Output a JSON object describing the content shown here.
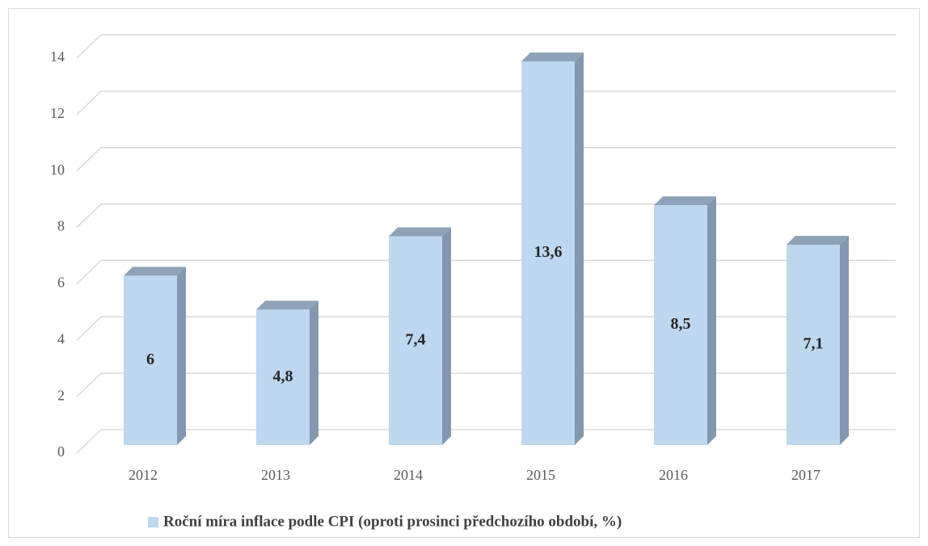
{
  "chart_data": {
    "type": "bar3d",
    "categories": [
      "2012",
      "2013",
      "2014",
      "2015",
      "2016",
      "2017"
    ],
    "series": [
      {
        "name": "Roční míra inflace podle CPI (oproti prosinci předchozího období, %)",
        "color": "#bdd7ee",
        "values": [
          6,
          4.8,
          7.4,
          13.6,
          8.5,
          7.1
        ],
        "value_labels": [
          "6",
          "4,8",
          "7,4",
          "13,6",
          "8,5",
          "7,1"
        ]
      }
    ],
    "ylim": [
      0,
      14
    ],
    "yticks": [
      0,
      2,
      4,
      6,
      8,
      10,
      12,
      14
    ],
    "grid": true,
    "legend": "bottom"
  }
}
